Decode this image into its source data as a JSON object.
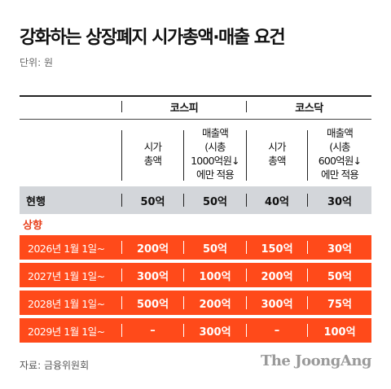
{
  "title": "강화하는 상장폐지 시가총액·매출 요건",
  "unit": "단위: 원",
  "groups": {
    "kospi": "코스피",
    "kosdaq": "코스닥"
  },
  "subheaders": {
    "kospi_cap": "시가\n총액",
    "kospi_sales": "매출액\n(시총\n1000억원↓\n에만 적용",
    "kosdaq_cap": "시가\n총액",
    "kosdaq_sales": "매출액\n(시총\n600억원↓\n에만 적용"
  },
  "current": {
    "label": "현행",
    "values": [
      "50억",
      "50억",
      "40억",
      "30억"
    ]
  },
  "raised_label": "상향",
  "rows": [
    {
      "label": "2026년 1월 1일~",
      "values": [
        "200억",
        "50억",
        "150억",
        "30억"
      ]
    },
    {
      "label": "2027년 1월 1일~",
      "values": [
        "300억",
        "100억",
        "200억",
        "50억"
      ]
    },
    {
      "label": "2028년 1월 1일~",
      "values": [
        "500억",
        "200억",
        "300억",
        "75억"
      ]
    },
    {
      "label": "2029년 1월 1일~",
      "values": [
        "–",
        "300억",
        "–",
        "100억"
      ]
    }
  ],
  "source": "자료: 금융위원회",
  "brand": "The JoongAng",
  "colors": {
    "accent_orange": "#ff4a1a",
    "current_row_gray": "#d3d6da",
    "raised_label": "#e8401c"
  }
}
